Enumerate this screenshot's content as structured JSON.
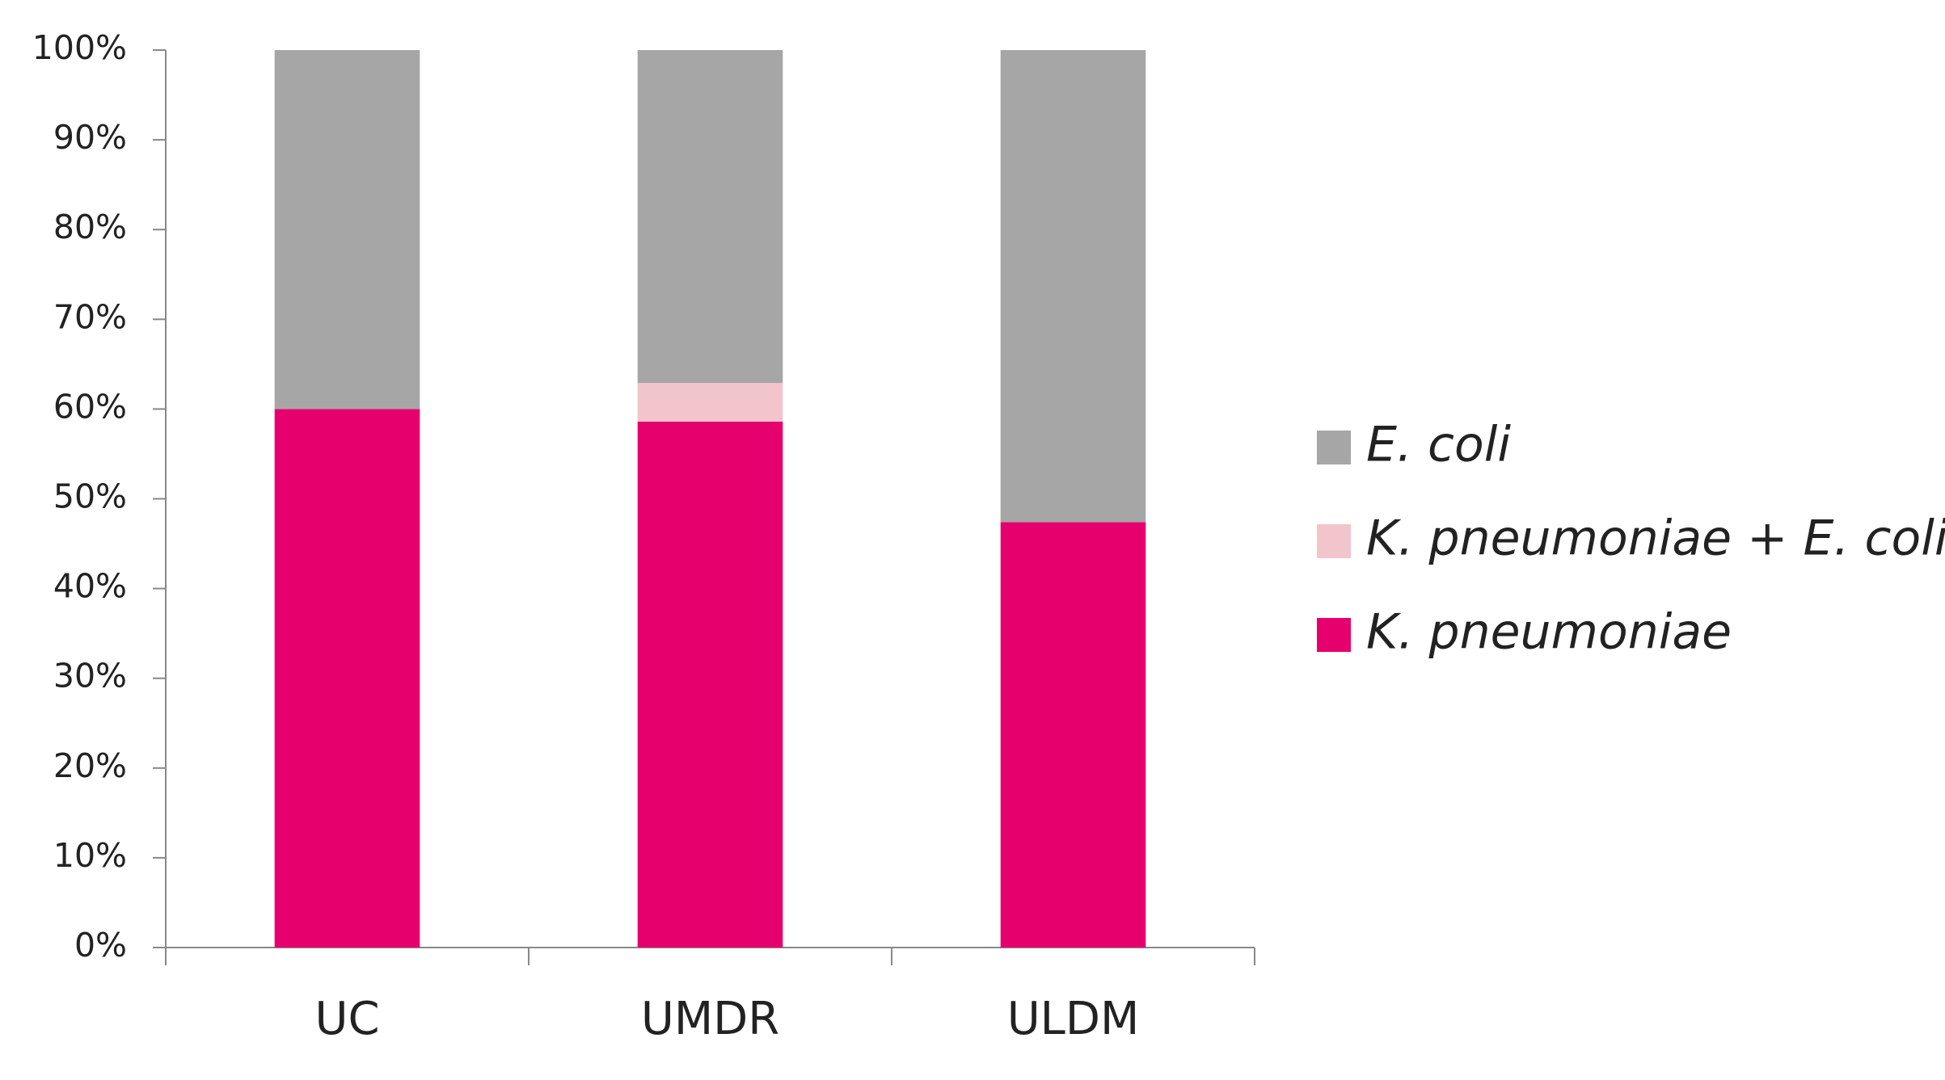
{
  "chart_data": {
    "type": "stacked_bar",
    "categories": [
      "UC",
      "UMDR",
      "ULDM"
    ],
    "series": [
      {
        "name": "K. pneumoniae",
        "color": "#e6006e",
        "values": [
          60,
          58.6,
          47.4
        ]
      },
      {
        "name": "K. pneumoniae + E. coli",
        "color": "#f2c4cc",
        "values": [
          0,
          4.3,
          0
        ]
      },
      {
        "name": "E. coli",
        "color": "#a6a6a6",
        "values": [
          40,
          37.1,
          52.6
        ]
      }
    ],
    "ylim": [
      0,
      100
    ],
    "yticks": [
      {
        "value": 0,
        "label": "0%"
      },
      {
        "value": 10,
        "label": "10%"
      },
      {
        "value": 20,
        "label": "20%"
      },
      {
        "value": 30,
        "label": "30%"
      },
      {
        "value": 40,
        "label": "40%"
      },
      {
        "value": 50,
        "label": "50%"
      },
      {
        "value": 60,
        "label": "60%"
      },
      {
        "value": 70,
        "label": "70%"
      },
      {
        "value": 80,
        "label": "80%"
      },
      {
        "value": 90,
        "label": "90%"
      },
      {
        "value": 100,
        "label": "100%"
      }
    ],
    "grid": false,
    "legend": "right"
  }
}
